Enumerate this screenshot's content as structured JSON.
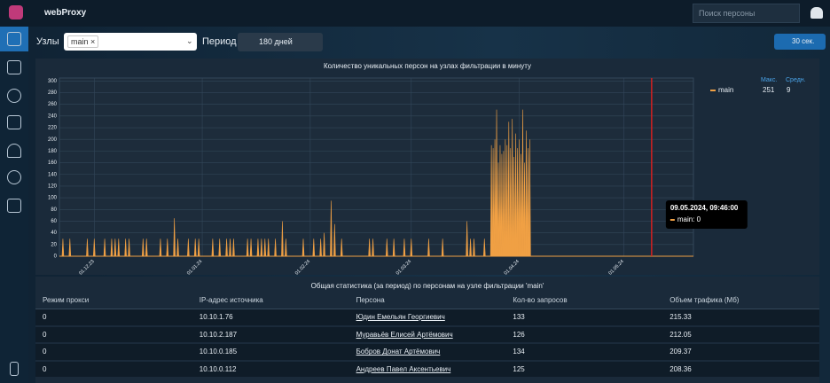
{
  "app": {
    "title": "webProxy",
    "search_placeholder": "Поиск персоны"
  },
  "filters": {
    "nodes_label": "Узлы",
    "node": "main ×",
    "period_label": "Период",
    "period": "180 дней",
    "refresh": "30 сек."
  },
  "chart_data": {
    "type": "spike",
    "title": "Количество уникальных персон на узлах фильтрации в минуту",
    "xlim": [
      -10,
      172
    ],
    "xticks": [
      {
        "value": 0,
        "label": "01.12.23"
      },
      {
        "value": 31,
        "label": "01.01.24"
      },
      {
        "value": 62,
        "label": "01.02.24"
      },
      {
        "value": 91,
        "label": "01.03.24"
      },
      {
        "value": 122,
        "label": "01.04.24"
      },
      {
        "value": 152,
        "label": "01.05.24"
      }
    ],
    "ylim": [
      0,
      305
    ],
    "yticks": [
      0,
      20,
      40,
      60,
      80,
      100,
      120,
      140,
      160,
      180,
      200,
      220,
      240,
      260,
      280,
      300
    ],
    "grid": true,
    "series": [
      {
        "name": "main",
        "color": "#f0a044",
        "x": [
          -9,
          -7,
          -2,
          0,
          3,
          5,
          6,
          7,
          9,
          10,
          14,
          15,
          19,
          21,
          23,
          24,
          27,
          29,
          30,
          34,
          36,
          38,
          39,
          40,
          44,
          45,
          47,
          48,
          49,
          50,
          52,
          54,
          55,
          60,
          63,
          65,
          66,
          68,
          69,
          71,
          79,
          80,
          84,
          86,
          89,
          91,
          96,
          100,
          107,
          108,
          109,
          112,
          114,
          114.5,
          115,
          115.5,
          116,
          116.5,
          117,
          117.5,
          118,
          118.5,
          119,
          119.5,
          120,
          120.5,
          121,
          121.5,
          122,
          122.5,
          123,
          123.5,
          124,
          124.5,
          125
        ],
        "values": [
          30,
          30,
          30,
          30,
          30,
          30,
          30,
          30,
          30,
          30,
          30,
          30,
          30,
          30,
          65,
          30,
          30,
          30,
          30,
          30,
          30,
          30,
          30,
          30,
          30,
          30,
          30,
          30,
          30,
          30,
          30,
          60,
          30,
          30,
          30,
          30,
          40,
          95,
          55,
          30,
          30,
          30,
          30,
          30,
          30,
          30,
          30,
          30,
          60,
          30,
          30,
          30,
          190,
          185,
          200,
          251,
          160,
          190,
          175,
          180,
          200,
          190,
          230,
          185,
          235,
          170,
          210,
          185,
          200,
          175,
          251,
          160,
          215,
          185,
          200
        ]
      }
    ],
    "legend": {
      "max_label": "Макс.",
      "avg_label": "Средн.",
      "max": 251,
      "avg": 9
    },
    "marker": {
      "x": 160,
      "title": "09.05.2024, 09:46:00",
      "text": "main: 0",
      "color": "#d42020"
    }
  },
  "table": {
    "title": "Общая статистика (за период) по персонам на узле фильтрации 'main'",
    "headers": [
      "Режим прокси",
      "IP-адрес источника",
      "Персона",
      "Кол-во запросов",
      "Объем трафика (Мб)"
    ],
    "rows": [
      [
        "0",
        "10.10.1.76",
        "Юдин Емельян Георгиевич",
        "133",
        "215.33"
      ],
      [
        "0",
        "10.10.2.187",
        "Муравьёв Елисей Артёмович",
        "126",
        "212.05"
      ],
      [
        "0",
        "10.10.0.185",
        "Бобров Донат Артёмович",
        "134",
        "209.37"
      ],
      [
        "0",
        "10.10.0.112",
        "Андреев Павел Аксентьевич",
        "125",
        "208.36"
      ]
    ]
  }
}
